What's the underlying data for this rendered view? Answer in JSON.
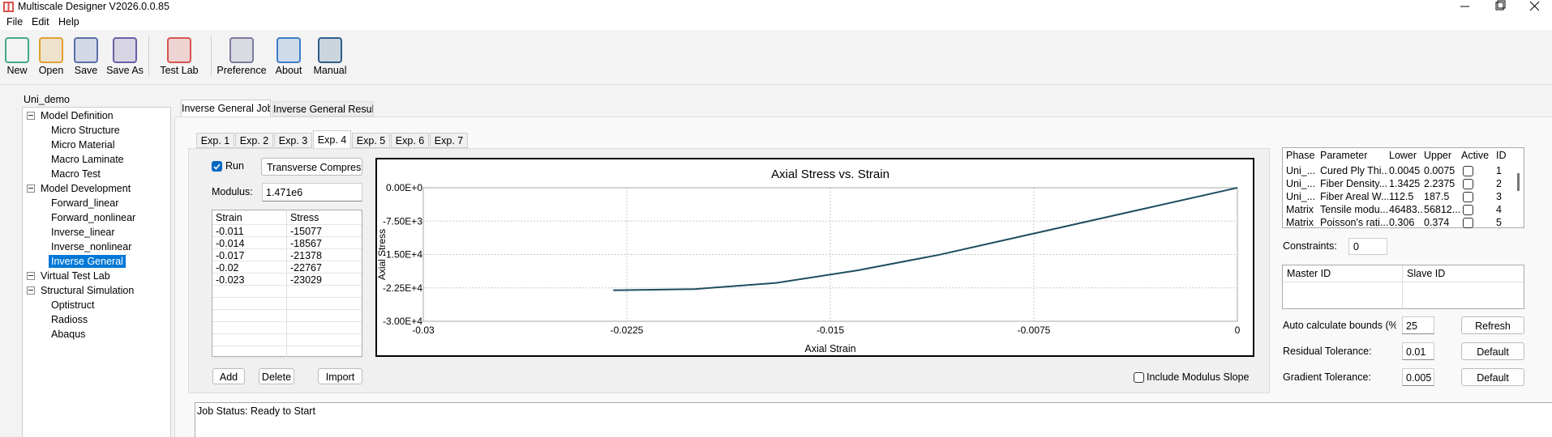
{
  "window": {
    "title": "Multiscale Designer V2026.0.0.85"
  },
  "menu": [
    "File",
    "Edit",
    "Help"
  ],
  "toolbar": [
    "New",
    "Open",
    "Save",
    "Save As",
    "Test Lab",
    "Preference",
    "About",
    "Manual"
  ],
  "tree": {
    "root": "Uni_demo",
    "groups": [
      {
        "label": "Model Definition",
        "items": [
          "Micro Structure",
          "Micro Material",
          "Macro Laminate",
          "Macro Test"
        ]
      },
      {
        "label": "Model Development",
        "items": [
          "Forward_linear",
          "Forward_nonlinear",
          "Inverse_linear",
          "Inverse_nonlinear",
          "Inverse General"
        ]
      },
      {
        "label": "Virtual Test Lab",
        "items": []
      },
      {
        "label": "Structural Simulation",
        "items": [
          "Optistruct",
          "Radioss",
          "Abaqus"
        ]
      }
    ],
    "selected_item": "Inverse General"
  },
  "tabs": [
    "Inverse General Job",
    "Inverse General Result"
  ],
  "experiments": {
    "tabs": [
      "Exp. 1",
      "Exp. 2",
      "Exp. 3",
      "Exp. 4",
      "Exp. 5",
      "Exp. 6",
      "Exp. 7"
    ],
    "active": 3,
    "run": {
      "label": "Run",
      "checked": true
    },
    "test_type": "Transverse Compressi",
    "modulus_label": "Modulus:",
    "modulus": "1.471e6",
    "table": {
      "headers": [
        "Strain",
        "Stress"
      ],
      "rows": [
        [
          "-0.011",
          "-15077"
        ],
        [
          "-0.014",
          "-18567"
        ],
        [
          "-0.017",
          "-21378"
        ],
        [
          "-0.02",
          "-22767"
        ],
        [
          "-0.023",
          "-23029"
        ]
      ]
    },
    "buttons": [
      "Add",
      "Delete",
      "Import"
    ],
    "include_modulus_slope": {
      "label": "Include Modulus Slope",
      "checked": false
    }
  },
  "parameters": {
    "headers": [
      "Phase",
      "Parameter",
      "Lower",
      "Upper",
      "Active",
      "ID"
    ],
    "rows": [
      [
        "Uni_...",
        "Cured Ply Thi...",
        "0.0045",
        "0.0075",
        false,
        "1"
      ],
      [
        "Uni_...",
        "Fiber Density...",
        "1.3425",
        "2.2375",
        false,
        "2"
      ],
      [
        "Uni_...",
        "Fiber Areal W...",
        "112.5",
        "187.5",
        false,
        "3"
      ],
      [
        "Matrix",
        "Tensile modu...",
        "46483...",
        "56812...",
        false,
        "4"
      ],
      [
        "Matrix",
        "Poisson's rati...",
        "0.306",
        "0.374",
        false,
        "5"
      ]
    ]
  },
  "constraints": {
    "label": "Constraints:",
    "value": "0",
    "headers": [
      "Master ID",
      "Slave ID"
    ]
  },
  "settings": [
    {
      "label": "Auto calculate bounds (%)",
      "value": "25",
      "button": "Refresh"
    },
    {
      "label": "Residual Tolerance:",
      "value": "0.01",
      "button": "Default"
    },
    {
      "label": "Gradient Tolerance:",
      "value": "0.005",
      "button": "Default"
    }
  ],
  "job_status": "Job Status: Ready to Start",
  "chart_data": {
    "type": "line",
    "title": "Axial Stress vs. Strain",
    "x_label": "Axial Strain",
    "y_label": "Axial Stress",
    "x": [
      -0.023,
      -0.02,
      -0.017,
      -0.014,
      -0.011,
      0
    ],
    "values": [
      -23029,
      -22767,
      -21378,
      -18567,
      -15077,
      0
    ],
    "color": "#1f4e5f",
    "xlim": [
      -0.03,
      0
    ],
    "xticks": [
      -0.03,
      -0.0225,
      -0.015,
      -0.0075,
      0
    ],
    "ylim": [
      -30000,
      0
    ],
    "yticks": [
      {
        "value": 0,
        "label": "0.00E+0"
      },
      {
        "value": -7500,
        "label": "-7.50E+3"
      },
      {
        "value": -15000,
        "label": "-1.50E+4"
      },
      {
        "value": -22500,
        "label": "-2.25E+4"
      },
      {
        "value": -30000,
        "label": "-3.00E+4"
      }
    ],
    "grid": true
  }
}
